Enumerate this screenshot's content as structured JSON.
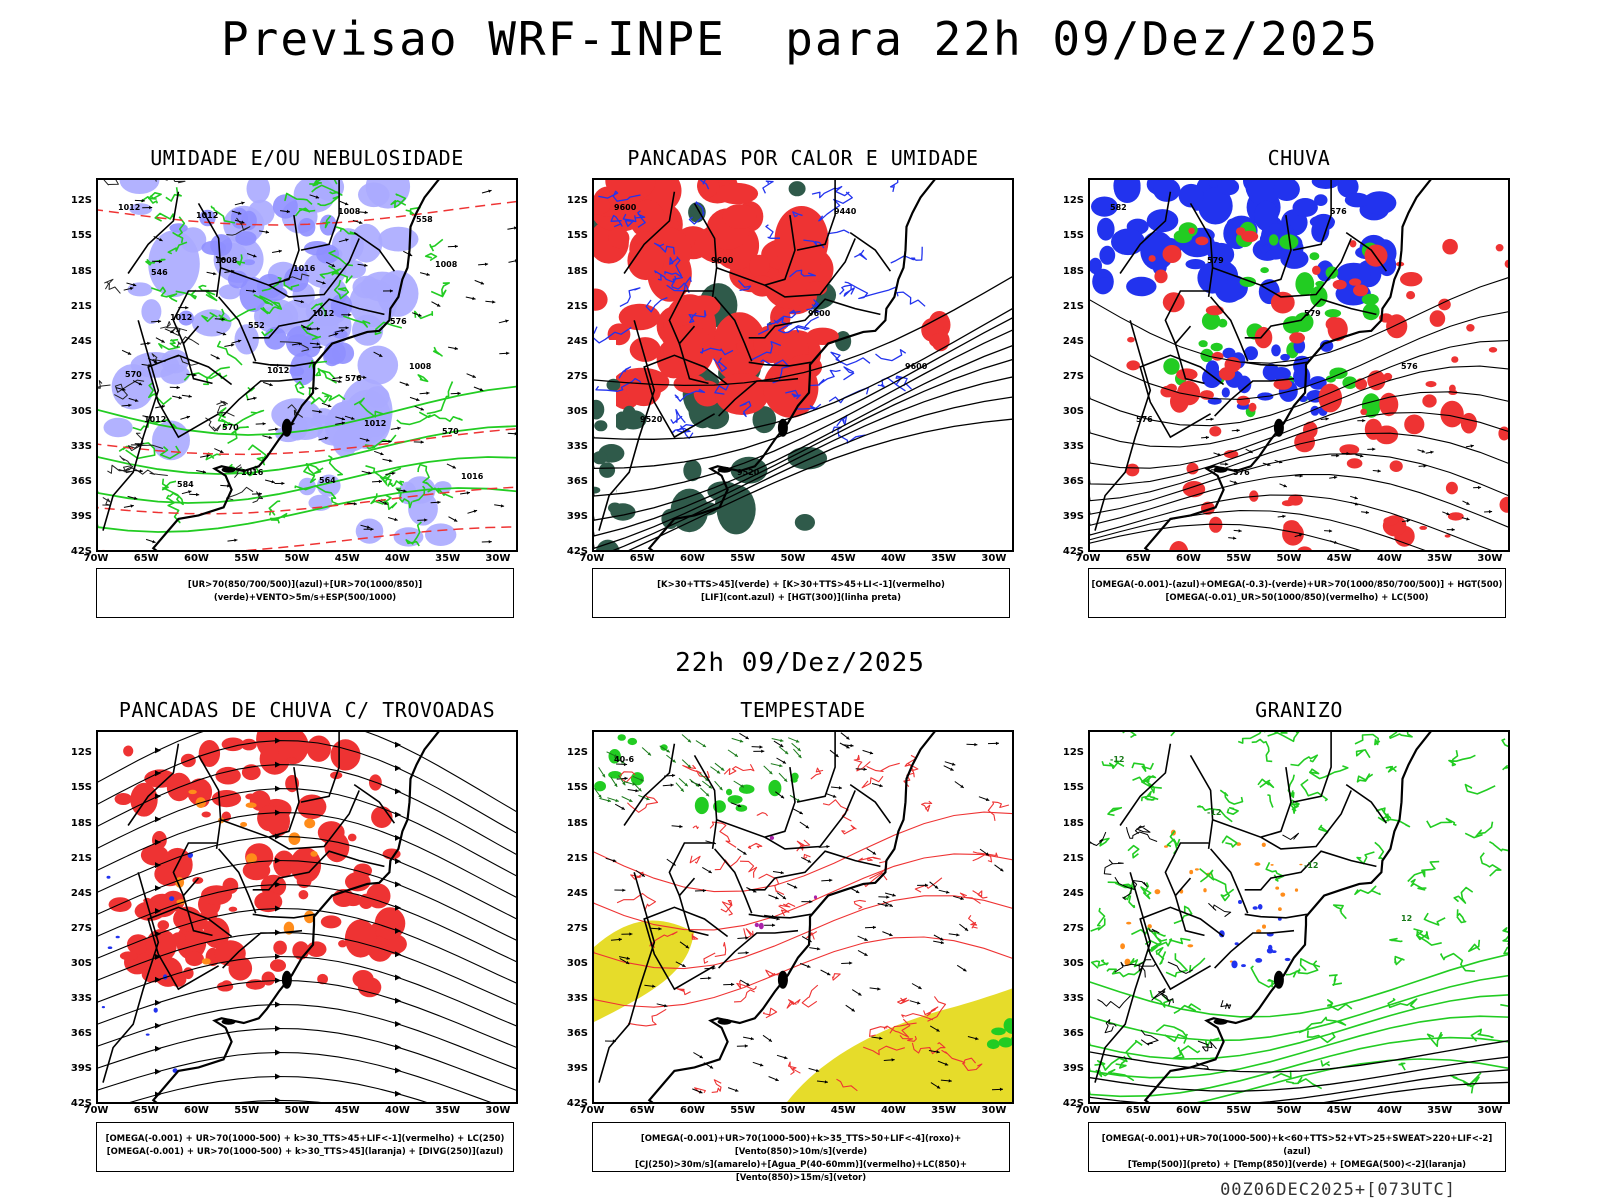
{
  "header": {
    "title": "Previsao WRF-INPE  para 22h 09/Dez/2025"
  },
  "middle": {
    "title": "22h 09/Dez/2025"
  },
  "footer": {
    "run": "00Z06DEC2025+[073UTC]"
  },
  "axes": {
    "lat_ticks": [
      "12S",
      "15S",
      "18S",
      "21S",
      "24S",
      "27S",
      "30S",
      "33S",
      "36S",
      "39S",
      "42S"
    ],
    "lon_ticks": [
      "70W",
      "65W",
      "60W",
      "55W",
      "50W",
      "45W",
      "40W",
      "35W",
      "30W"
    ]
  },
  "colors": {
    "blue": "#2233ee",
    "green": "#22cc22",
    "red": "#ee3333",
    "orange": "#ff8c1a",
    "yellow": "#e6dc2a",
    "lightblue": "#aaaaff",
    "darkgreen": "#2f5a4a",
    "black": "#000000"
  },
  "panels": [
    {
      "title": "UMIDADE E/OU NEBULOSIDADE",
      "legend": [
        "[UR>70(850/700/500)](azul)+[UR>70(1000/850)](verde)+VENTO>5m/s+ESP(500/1000)"
      ],
      "labels": [
        "1012",
        "1008",
        "1012",
        "1008",
        "1012",
        "1016",
        "1008",
        "1008",
        "1012",
        "1012",
        "1012",
        "1016",
        "1012",
        "1016",
        "576",
        "570",
        "570",
        "564",
        "558",
        "546",
        "552",
        "576",
        "570",
        "584"
      ]
    },
    {
      "title": "PANCADAS POR CALOR E UMIDADE",
      "legend": [
        "[K>30+TTS>45](verde) + [K>30+TTS>45+LI<-1](vermelho)",
        "[LIF](cont.azul) + [HGT(300)](linha preta)"
      ],
      "labels": [
        "9600",
        "9600",
        "9600",
        "9600",
        "9520",
        "9520",
        "9440"
      ]
    },
    {
      "title": "CHUVA",
      "legend": [
        "[OMEGA(-0.001)-(azul)+OMEGA(-0.3)-(verde)+UR>70(1000/850/700/500)] + HGT(500)",
        "[OMEGA(-0.01)_UR>50(1000/850)(vermelho) + LC(500)"
      ],
      "labels": [
        "582",
        "579",
        "579",
        "576",
        "576",
        "576",
        "576"
      ]
    },
    {
      "title": "PANCADAS DE CHUVA C/ TROVOADAS",
      "legend": [
        "[OMEGA(-0.001) + UR>70(1000-500) + k>30_TTS>45+LIF<-1](vermelho) + LC(250)",
        "[OMEGA(-0.001) + UR>70(1000-500) + k>30_TTS>45](laranja) + [DIVG(250)](azul)"
      ],
      "labels": []
    },
    {
      "title": "TEMPESTADE",
      "legend": [
        "[OMEGA(-0.001)+UR>70(1000-500)+k>35_TTS>50+LIF<-4](roxo)+[Vento(850)>10m/s](verde)",
        "[CJ(250)>30m/s](amarelo)+[Agua_P(40-60mm)](vermelho)+LC(850)+[Vento(850)>15m/s](vetor)"
      ],
      "labels": [
        "40-6"
      ]
    },
    {
      "title": "GRANIZO",
      "legend": [
        "[OMEGA(-0.001)+UR>70(1000-500)+k<60+TTS>52+VT>25+SWEAT>220+LIF<-2](azul)",
        "[Temp(500)](preto) + [Temp(850)](verde) + [OMEGA(500)<-2](laranja)"
      ],
      "labels": [
        "-12",
        "-12",
        "-12",
        "12"
      ]
    }
  ]
}
